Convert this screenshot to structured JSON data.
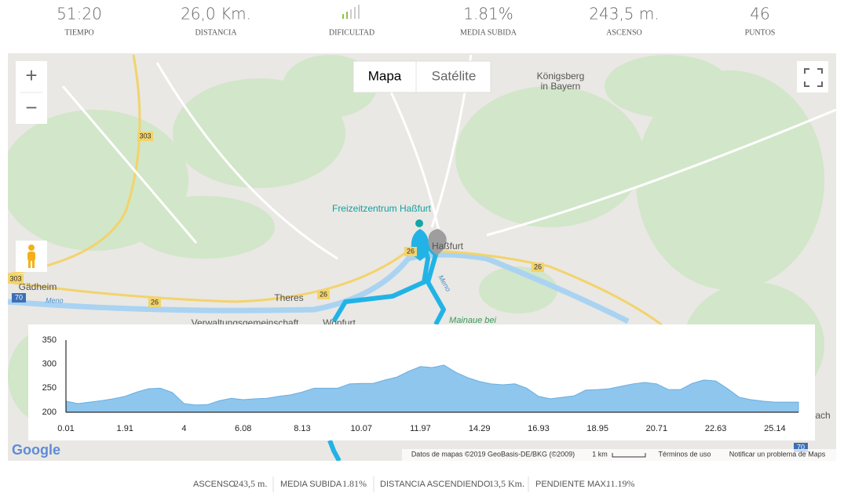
{
  "stats": [
    {
      "value": "51:20",
      "label": "TIEMPO"
    },
    {
      "value": "26,0 Km.",
      "label": "DISTANCIA"
    },
    {
      "label": "DIFICULTAD"
    },
    {
      "value": "1.81%",
      "label": "MEDIA SUBIDA"
    },
    {
      "value": "243,5 m.",
      "label": "ASCENSO"
    },
    {
      "value": "46",
      "label": "PUNTOS"
    }
  ],
  "map": {
    "buttons": {
      "map": "Mapa",
      "satellite": "Satélite"
    },
    "zoom_in": "+",
    "zoom_out": "−",
    "labels": {
      "konigsberg_1": "Königsberg",
      "konigsberg_2": "in Bayern",
      "freizeit": "Freizeitzentrum Haßfurt",
      "hassfurt": "Haßfurt",
      "gadheim": "Gädheim",
      "theres": "Theres",
      "meno_1": "Meno",
      "meno_2": "Meno",
      "mainaue": "Mainaue bei",
      "verwaltung": "Verwaltungsgemeinschaft",
      "wonfurt": "Wonfurt",
      "ach": "ach"
    },
    "shields": {
      "r303a": "303",
      "r303b": "303",
      "r26a": "26",
      "r26b": "26",
      "r26c": "26",
      "r26d": "26",
      "r70a": "70",
      "r70b": "70"
    },
    "footer": {
      "logo": "Google",
      "data": "Datos de mapas ©2019 GeoBasis-DE/BKG (©2009)",
      "scale": "1 km",
      "terms": "Términos de uso",
      "report": "Notificar un problema de Maps"
    }
  },
  "chart_data": {
    "type": "area",
    "color": "#8ec6ee",
    "categories": [
      "0.01",
      null,
      null,
      null,
      null,
      "1.91",
      null,
      null,
      null,
      null,
      "4",
      null,
      null,
      null,
      null,
      "6.08",
      null,
      null,
      null,
      null,
      "8.13",
      null,
      null,
      null,
      null,
      "10.07",
      null,
      null,
      null,
      null,
      "11.97",
      null,
      null,
      null,
      null,
      "14.29",
      null,
      null,
      null,
      null,
      "16.93",
      null,
      null,
      null,
      null,
      "18.95",
      null,
      null,
      null,
      null,
      "20.71",
      null,
      null,
      null,
      null,
      "22.63",
      null,
      null,
      null,
      null,
      "25.14",
      null,
      null
    ],
    "values": [
      223,
      218,
      221,
      224,
      228,
      233,
      242,
      249,
      250,
      241,
      218,
      215,
      216,
      224,
      229,
      226,
      228,
      229,
      233,
      236,
      242,
      250,
      250,
      250,
      259,
      260,
      260,
      267,
      273,
      285,
      295,
      293,
      298,
      283,
      272,
      264,
      259,
      257,
      259,
      250,
      233,
      228,
      231,
      234,
      246,
      247,
      249,
      254,
      259,
      262,
      259,
      247,
      247,
      260,
      267,
      265,
      249,
      231,
      226,
      223,
      221,
      221,
      221
    ],
    "ylim": [
      200,
      350
    ],
    "yticks": [
      200,
      250,
      300,
      350
    ]
  },
  "summary": [
    {
      "label": "ASCENSO",
      "value": "243,5 m."
    },
    {
      "label": "MEDIA SUBIDA",
      "value": "1.81%"
    },
    {
      "label": "DISTANCIA ASCENDIENDO",
      "value": "13,5 Km."
    },
    {
      "label": "PENDIENTE MAX.",
      "value": "11.19%"
    }
  ]
}
